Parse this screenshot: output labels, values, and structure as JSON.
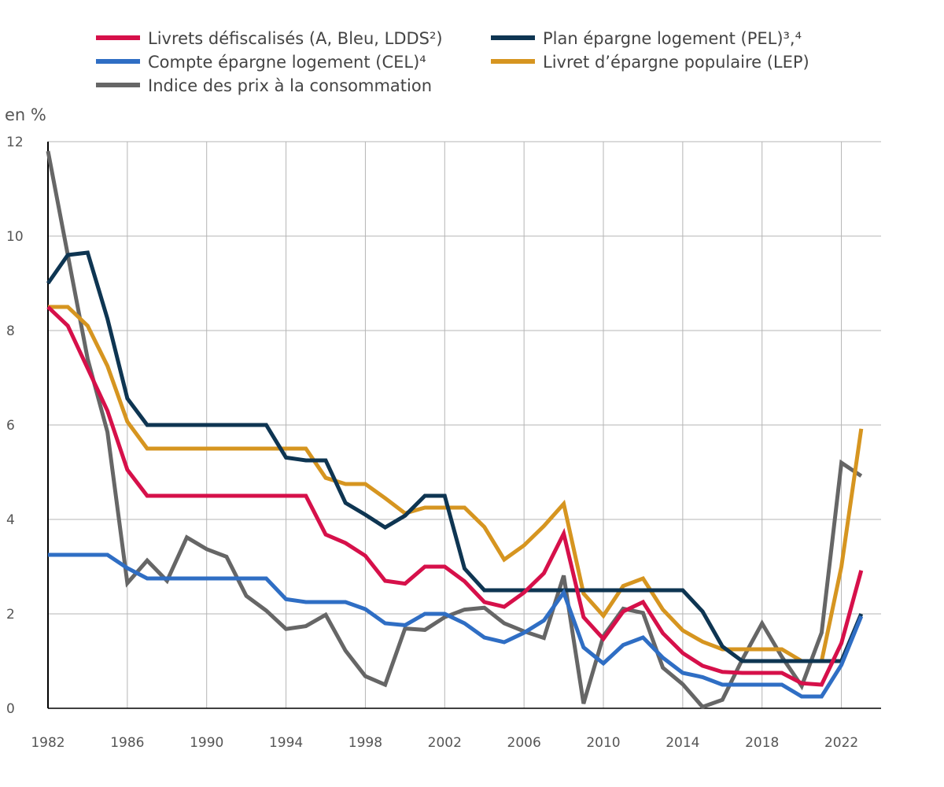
{
  "chart_data": {
    "type": "line",
    "title": "",
    "ylabel": "en %",
    "xlabel": "",
    "xlim": [
      1982,
      2024
    ],
    "ylim": [
      0,
      12
    ],
    "x_ticks": [
      1982,
      1986,
      1990,
      1994,
      1998,
      2002,
      2006,
      2010,
      2014,
      2018,
      2022
    ],
    "y_ticks": [
      0,
      2,
      4,
      6,
      8,
      10,
      12
    ],
    "grid": true,
    "legend_position": "top",
    "x": [
      1982,
      1983,
      1984,
      1985,
      1986,
      1987,
      1988,
      1989,
      1990,
      1991,
      1992,
      1993,
      1994,
      1995,
      1996,
      1997,
      1998,
      1999,
      2000,
      2001,
      2002,
      2003,
      2004,
      2005,
      2006,
      2007,
      2008,
      2009,
      2010,
      2011,
      2012,
      2013,
      2014,
      2015,
      2016,
      2017,
      2018,
      2019,
      2020,
      2021,
      2022,
      2023
    ],
    "series": [
      {
        "name": "Livrets défiscalisés (A, Bleu, LDDS²)",
        "color": "#d6104a",
        "values": [
          8.5,
          8.1,
          7.2,
          6.3,
          5.05,
          4.5,
          4.5,
          4.5,
          4.5,
          4.5,
          4.5,
          4.5,
          4.5,
          4.5,
          3.68,
          3.5,
          3.23,
          2.7,
          2.64,
          3.0,
          3.0,
          2.69,
          2.25,
          2.15,
          2.45,
          2.86,
          3.7,
          1.93,
          1.47,
          2.05,
          2.25,
          1.59,
          1.17,
          0.9,
          0.77,
          0.75,
          0.75,
          0.75,
          0.53,
          0.5,
          1.38,
          2.92
        ]
      },
      {
        "name": "Plan épargne logement (PEL)³,⁴",
        "color": "#0e3552",
        "values": [
          9.0,
          9.6,
          9.65,
          8.25,
          6.56,
          6.0,
          6.0,
          6.0,
          6.0,
          6.0,
          6.0,
          6.0,
          5.31,
          5.25,
          5.25,
          4.35,
          4.1,
          3.83,
          4.08,
          4.5,
          4.5,
          2.96,
          2.5,
          2.5,
          2.5,
          2.5,
          2.5,
          2.5,
          2.5,
          2.5,
          2.5,
          2.5,
          2.5,
          2.05,
          1.31,
          1.0,
          1.0,
          1.0,
          1.0,
          1.0,
          1.0,
          2.0
        ]
      },
      {
        "name": "Compte épargne logement (CEL)⁴",
        "color": "#2f6ec4",
        "values": [
          3.25,
          3.25,
          3.25,
          3.25,
          2.97,
          2.75,
          2.75,
          2.75,
          2.75,
          2.75,
          2.75,
          2.75,
          2.31,
          2.25,
          2.25,
          2.25,
          2.1,
          1.8,
          1.76,
          2.0,
          2.0,
          1.8,
          1.5,
          1.4,
          1.6,
          1.86,
          2.45,
          1.29,
          0.95,
          1.34,
          1.5,
          1.07,
          0.75,
          0.66,
          0.5,
          0.5,
          0.5,
          0.5,
          0.25,
          0.25,
          0.92,
          1.95
        ]
      },
      {
        "name": "Livret d’épargne populaire (LEP)",
        "color": "#d69520",
        "values": [
          8.5,
          8.5,
          8.1,
          7.25,
          6.07,
          5.5,
          5.5,
          5.5,
          5.5,
          5.5,
          5.5,
          5.5,
          5.5,
          5.5,
          4.88,
          4.75,
          4.75,
          4.45,
          4.13,
          4.25,
          4.25,
          4.25,
          3.84,
          3.15,
          3.45,
          3.86,
          4.33,
          2.43,
          1.96,
          2.59,
          2.75,
          2.09,
          1.65,
          1.41,
          1.25,
          1.25,
          1.25,
          1.25,
          1.0,
          1.0,
          3.0,
          5.92
        ]
      },
      {
        "name": "Indice des prix à la consommation",
        "color": "#666666",
        "values": [
          11.8,
          9.6,
          7.4,
          5.85,
          2.65,
          3.13,
          2.7,
          3.62,
          3.37,
          3.21,
          2.38,
          2.07,
          1.68,
          1.74,
          1.98,
          1.22,
          0.68,
          0.5,
          1.69,
          1.66,
          1.93,
          2.09,
          2.13,
          1.8,
          1.63,
          1.49,
          2.81,
          0.1,
          1.53,
          2.11,
          2.02,
          0.86,
          0.51,
          0.03,
          0.18,
          1.03,
          1.8,
          1.09,
          0.47,
          1.6,
          5.2,
          4.92
        ]
      }
    ]
  },
  "legend": {
    "items": [
      {
        "label": "Livrets défiscalisés (A, Bleu, LDDS²)",
        "color": "#d6104a"
      },
      {
        "label": "Plan épargne logement (PEL)³,⁴",
        "color": "#0e3552"
      },
      {
        "label": "Compte épargne logement (CEL)⁴",
        "color": "#2f6ec4"
      },
      {
        "label": "Livret d’épargne populaire (LEP)",
        "color": "#d69520"
      },
      {
        "label": "Indice des prix à la consommation",
        "color": "#666666"
      }
    ]
  }
}
